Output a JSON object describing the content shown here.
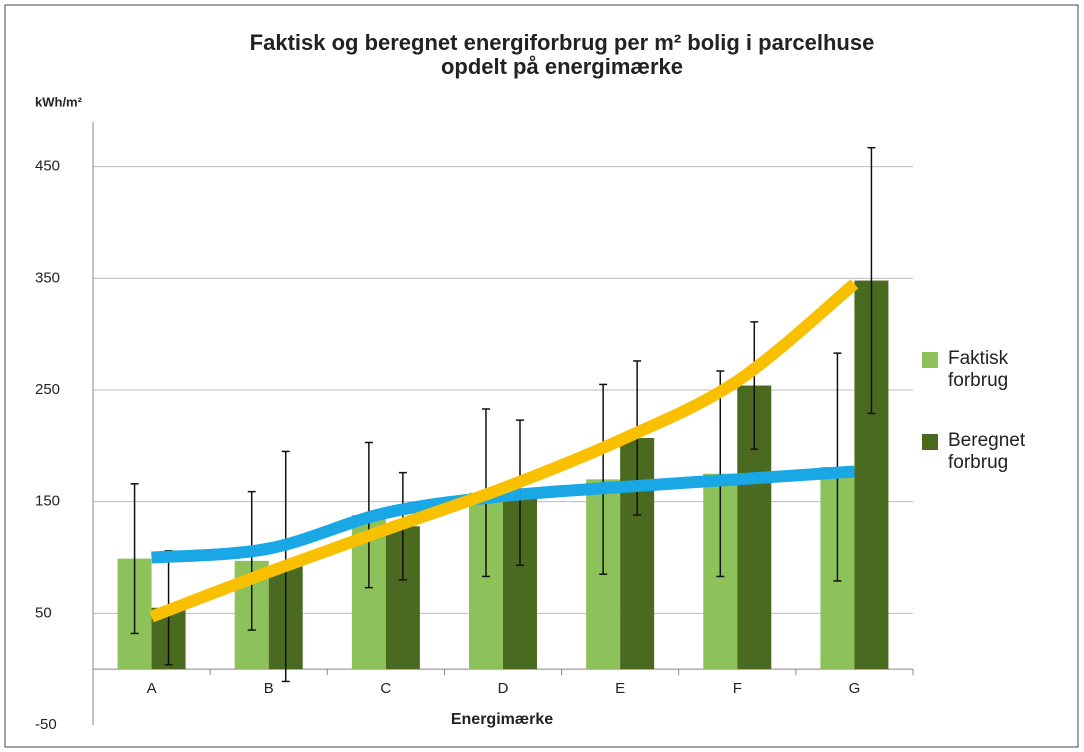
{
  "chart_data": {
    "type": "bar",
    "title": "Faktisk og beregnet energiforbrug  per m² bolig i parcelhuse",
    "subtitle": "opdelt på energimærke",
    "y_label": "kWh/m²",
    "x_label": "Energimærke",
    "categories": [
      "A",
      "B",
      "C",
      "D",
      "E",
      "F",
      "G"
    ],
    "series": [
      {
        "name": "Faktisk forbrug",
        "color": "#8dc15a",
        "values": [
          99,
          97,
          138,
          158,
          170,
          175,
          181
        ],
        "errors": [
          67,
          62,
          65,
          75,
          85,
          92,
          102
        ]
      },
      {
        "name": "Beregnet forbrug",
        "color": "#4a6b1f",
        "values": [
          55,
          92,
          128,
          158,
          207,
          254,
          348
        ],
        "errors": [
          51,
          103,
          48,
          65,
          69,
          57,
          119
        ]
      }
    ],
    "lines": [
      {
        "color": "#1aa7e6",
        "values": [
          100,
          108,
          140,
          155,
          163,
          170,
          177
        ]
      },
      {
        "color": "#f9c000",
        "values": [
          47,
          87,
          125,
          162,
          205,
          258,
          345
        ]
      }
    ],
    "ylim": [
      -50,
      490
    ],
    "yticks": [
      -50,
      50,
      150,
      250,
      350,
      450
    ],
    "grid": true,
    "legend": "right"
  }
}
